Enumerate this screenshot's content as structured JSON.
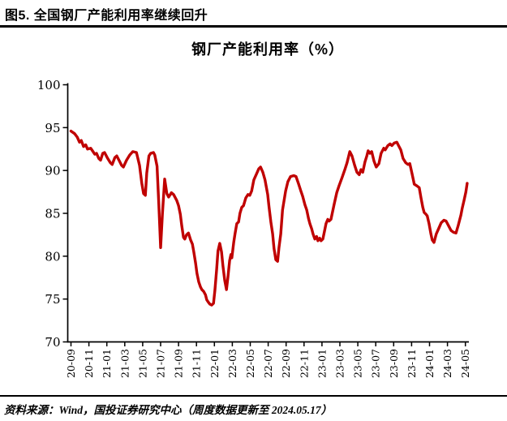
{
  "header": {
    "caption": "图5. 全国钢厂产能利用率继续回升"
  },
  "footer": {
    "source_note": "资料来源：Wind，国投证券研究中心（周度数据更新至 2024.05.17）"
  },
  "chart_data": {
    "type": "line",
    "title": "钢厂产能利用率（%）",
    "series_name": "钢厂产能利用率",
    "unit": "%",
    "ylim": [
      70,
      100
    ],
    "yticks": [
      70,
      75,
      80,
      85,
      90,
      95,
      100
    ],
    "grid": false,
    "legend": "none",
    "line_color": "#C00000",
    "axis_color": "#000000",
    "x_axis": {
      "unit": "months since 2020-09 (YY-MM labels, ticks every 2 months)",
      "tick_positions_months": [
        0,
        2,
        4,
        6,
        8,
        10,
        12,
        14,
        16,
        18,
        20,
        22,
        24,
        26,
        28,
        30,
        32,
        34,
        36,
        38,
        40,
        42,
        44
      ],
      "tick_labels": [
        "20-09",
        "20-11",
        "21-01",
        "21-03",
        "21-05",
        "21-07",
        "21-09",
        "21-11",
        "22-01",
        "22-03",
        "22-05",
        "22-07",
        "22-09",
        "22-11",
        "23-01",
        "23-03",
        "23-05",
        "23-07",
        "23-09",
        "23-11",
        "24-01",
        "24-03",
        "24-05"
      ]
    },
    "points": [
      [
        0,
        94.6
      ],
      [
        0.4,
        94.3
      ],
      [
        0.7,
        93.9
      ],
      [
        0.95,
        93.3
      ],
      [
        1.15,
        93.5
      ],
      [
        1.4,
        92.8
      ],
      [
        1.65,
        93.0
      ],
      [
        1.85,
        92.5
      ],
      [
        2.2,
        92.6
      ],
      [
        2.4,
        92.3
      ],
      [
        2.65,
        91.9
      ],
      [
        2.85,
        92.0
      ],
      [
        3.1,
        91.4
      ],
      [
        3.3,
        91.2
      ],
      [
        3.55,
        92.0
      ],
      [
        3.75,
        92.1
      ],
      [
        4.1,
        91.4
      ],
      [
        4.4,
        90.9
      ],
      [
        4.6,
        90.7
      ],
      [
        4.9,
        91.5
      ],
      [
        5.1,
        91.7
      ],
      [
        5.4,
        91.1
      ],
      [
        5.65,
        90.6
      ],
      [
        5.85,
        90.4
      ],
      [
        6.2,
        91.2
      ],
      [
        6.55,
        91.8
      ],
      [
        6.9,
        92.2
      ],
      [
        7.3,
        92.1
      ],
      [
        7.65,
        90.6
      ],
      [
        7.9,
        88.5
      ],
      [
        8.1,
        87.3
      ],
      [
        8.3,
        87.1
      ],
      [
        8.45,
        89.7
      ],
      [
        8.7,
        91.7
      ],
      [
        8.9,
        92.0
      ],
      [
        9.2,
        92.1
      ],
      [
        9.35,
        91.8
      ],
      [
        9.6,
        90.5
      ],
      [
        9.8,
        86.0
      ],
      [
        10.0,
        81.0
      ],
      [
        10.2,
        84.9
      ],
      [
        10.45,
        89.0
      ],
      [
        10.7,
        87.3
      ],
      [
        10.9,
        86.9
      ],
      [
        11.2,
        87.4
      ],
      [
        11.45,
        87.2
      ],
      [
        11.8,
        86.5
      ],
      [
        12.0,
        85.9
      ],
      [
        12.2,
        84.9
      ],
      [
        12.35,
        83.6
      ],
      [
        12.55,
        82.2
      ],
      [
        12.7,
        82.0
      ],
      [
        12.9,
        82.5
      ],
      [
        13.1,
        82.7
      ],
      [
        13.35,
        81.9
      ],
      [
        13.55,
        81.4
      ],
      [
        13.7,
        80.5
      ],
      [
        13.9,
        79.2
      ],
      [
        14.05,
        78.0
      ],
      [
        14.25,
        77.0
      ],
      [
        14.45,
        76.4
      ],
      [
        14.6,
        76.1
      ],
      [
        14.8,
        75.9
      ],
      [
        15.0,
        75.5
      ],
      [
        15.15,
        74.9
      ],
      [
        15.35,
        74.6
      ],
      [
        15.5,
        74.4
      ],
      [
        15.7,
        74.3
      ],
      [
        15.9,
        74.5
      ],
      [
        16.05,
        76.0
      ],
      [
        16.25,
        78.5
      ],
      [
        16.4,
        80.6
      ],
      [
        16.6,
        81.5
      ],
      [
        16.8,
        80.5
      ],
      [
        16.95,
        78.9
      ],
      [
        17.15,
        77.2
      ],
      [
        17.35,
        76.1
      ],
      [
        17.5,
        77.5
      ],
      [
        17.7,
        79.5
      ],
      [
        17.85,
        80.2
      ],
      [
        17.95,
        79.8
      ],
      [
        18.15,
        81.6
      ],
      [
        18.3,
        82.6
      ],
      [
        18.5,
        83.8
      ],
      [
        18.7,
        84.0
      ],
      [
        18.85,
        85.0
      ],
      [
        19.05,
        85.7
      ],
      [
        19.25,
        85.9
      ],
      [
        19.5,
        86.8
      ],
      [
        19.75,
        87.2
      ],
      [
        19.95,
        87.1
      ],
      [
        20.15,
        87.6
      ],
      [
        20.4,
        88.9
      ],
      [
        20.7,
        89.6
      ],
      [
        20.95,
        90.2
      ],
      [
        21.15,
        90.4
      ],
      [
        21.4,
        89.8
      ],
      [
        21.65,
        88.9
      ],
      [
        21.95,
        87.2
      ],
      [
        22.1,
        85.7
      ],
      [
        22.3,
        84.0
      ],
      [
        22.5,
        82.6
      ],
      [
        22.65,
        80.9
      ],
      [
        22.85,
        79.6
      ],
      [
        23.05,
        79.4
      ],
      [
        23.2,
        81.0
      ],
      [
        23.4,
        82.6
      ],
      [
        23.6,
        85.4
      ],
      [
        23.95,
        87.6
      ],
      [
        24.2,
        88.7
      ],
      [
        24.5,
        89.3
      ],
      [
        24.85,
        89.4
      ],
      [
        25.1,
        89.3
      ],
      [
        25.4,
        88.4
      ],
      [
        25.65,
        87.6
      ],
      [
        25.85,
        87.0
      ],
      [
        26.1,
        86.0
      ],
      [
        26.3,
        85.4
      ],
      [
        26.5,
        84.4
      ],
      [
        26.65,
        83.8
      ],
      [
        26.85,
        83.2
      ],
      [
        27.0,
        82.6
      ],
      [
        27.2,
        82.0
      ],
      [
        27.4,
        82.3
      ],
      [
        27.55,
        81.8
      ],
      [
        27.75,
        82.1
      ],
      [
        27.9,
        81.8
      ],
      [
        28.1,
        82.0
      ],
      [
        28.3,
        83.0
      ],
      [
        28.45,
        83.8
      ],
      [
        28.65,
        84.3
      ],
      [
        28.8,
        84.1
      ],
      [
        29.0,
        84.3
      ],
      [
        29.35,
        86.0
      ],
      [
        29.65,
        87.4
      ],
      [
        29.9,
        88.2
      ],
      [
        30.25,
        89.2
      ],
      [
        30.55,
        90.1
      ],
      [
        30.8,
        90.9
      ],
      [
        31.1,
        92.2
      ],
      [
        31.35,
        91.7
      ],
      [
        31.65,
        90.6
      ],
      [
        31.9,
        89.8
      ],
      [
        32.15,
        89.5
      ],
      [
        32.35,
        90.1
      ],
      [
        32.55,
        89.8
      ],
      [
        32.8,
        91.0
      ],
      [
        33.0,
        91.7
      ],
      [
        33.15,
        92.3
      ],
      [
        33.35,
        92.0
      ],
      [
        33.55,
        92.2
      ],
      [
        33.8,
        91.1
      ],
      [
        34.05,
        90.4
      ],
      [
        34.35,
        90.8
      ],
      [
        34.6,
        92.0
      ],
      [
        34.9,
        92.6
      ],
      [
        35.05,
        92.4
      ],
      [
        35.35,
        92.9
      ],
      [
        35.6,
        93.1
      ],
      [
        35.8,
        92.9
      ],
      [
        36.05,
        93.2
      ],
      [
        36.35,
        93.3
      ],
      [
        36.5,
        93.0
      ],
      [
        36.8,
        92.4
      ],
      [
        37.05,
        91.4
      ],
      [
        37.35,
        90.9
      ],
      [
        37.6,
        90.7
      ],
      [
        37.8,
        90.8
      ],
      [
        38.05,
        89.6
      ],
      [
        38.3,
        88.4
      ],
      [
        38.6,
        88.2
      ],
      [
        38.85,
        88.0
      ],
      [
        39.05,
        86.8
      ],
      [
        39.25,
        85.7
      ],
      [
        39.4,
        85.1
      ],
      [
        39.6,
        84.9
      ],
      [
        39.75,
        84.7
      ],
      [
        39.95,
        83.8
      ],
      [
        40.15,
        82.6
      ],
      [
        40.3,
        81.9
      ],
      [
        40.5,
        81.6
      ],
      [
        40.75,
        82.6
      ],
      [
        41.05,
        83.3
      ],
      [
        41.3,
        83.9
      ],
      [
        41.6,
        84.2
      ],
      [
        41.85,
        84.1
      ],
      [
        42.15,
        83.5
      ],
      [
        42.4,
        83.0
      ],
      [
        42.65,
        82.8
      ],
      [
        42.95,
        82.7
      ],
      [
        43.2,
        83.6
      ],
      [
        43.5,
        84.8
      ],
      [
        43.65,
        85.6
      ],
      [
        43.85,
        86.5
      ],
      [
        44.05,
        87.5
      ],
      [
        44.2,
        88.5
      ]
    ]
  }
}
